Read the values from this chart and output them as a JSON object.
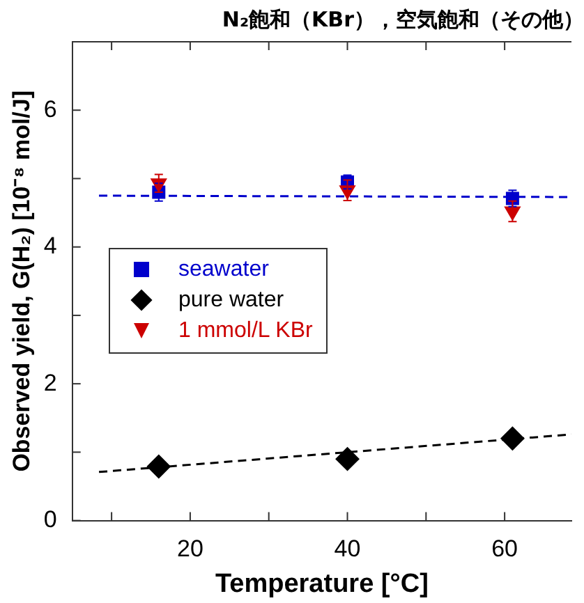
{
  "chart_data": {
    "type": "scatter",
    "title": "N₂飽和（KBr），空気飽和（その他）",
    "xlabel": "Temperature [°C]",
    "ylabel": "Observed yield, G(H₂) [10⁻⁸ mol/J]",
    "xlim": [
      5,
      68.5
    ],
    "xticks": [
      {
        "value": 10,
        "label": null
      },
      20,
      {
        "value": 30,
        "label": null
      },
      40,
      {
        "value": 50,
        "label": null
      },
      60
    ],
    "ylim": [
      0,
      7
    ],
    "yticks": [
      0,
      {
        "value": 1,
        "label": null
      },
      2,
      {
        "value": 3,
        "label": null
      },
      4,
      {
        "value": 5,
        "label": null
      },
      6,
      {
        "value": 7,
        "label": null
      }
    ],
    "grid": false,
    "legend": "left",
    "series": [
      {
        "name": "seawater",
        "type": "scatter",
        "marker": "square",
        "color": "#0000cc",
        "x": [
          16,
          40,
          61
        ],
        "values": [
          4.8,
          4.95,
          4.71
        ],
        "errors": [
          0.13,
          0.1,
          0.12
        ]
      },
      {
        "name": "pure water",
        "type": "scatter",
        "marker": "diamond",
        "color": "#000000",
        "x": [
          16,
          40,
          61
        ],
        "values": [
          0.79,
          0.9,
          1.2
        ]
      },
      {
        "name": "1 mmol/L KBr",
        "type": "scatter",
        "marker": "triangle",
        "color": "#cc0000",
        "x": [
          16,
          40,
          61
        ],
        "values": [
          4.93,
          4.83,
          4.52
        ],
        "errors": [
          0.13,
          0.15,
          0.15
        ]
      },
      {
        "type": "line",
        "line_style": "dashed",
        "color": "#0000cc",
        "x": [
          8.4,
          68.5
        ],
        "values": [
          4.75,
          4.73
        ]
      },
      {
        "type": "line",
        "line_style": "dashed",
        "color": "#000000",
        "x": [
          8.4,
          68.5
        ],
        "values": [
          0.71,
          1.26
        ]
      }
    ]
  }
}
